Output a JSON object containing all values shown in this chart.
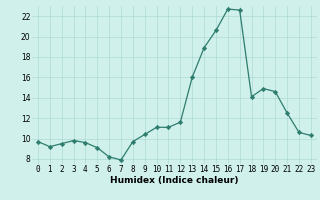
{
  "x": [
    0,
    1,
    2,
    3,
    4,
    5,
    6,
    7,
    8,
    9,
    10,
    11,
    12,
    13,
    14,
    15,
    16,
    17,
    18,
    19,
    20,
    21,
    22,
    23
  ],
  "y": [
    9.7,
    9.2,
    9.5,
    9.8,
    9.6,
    9.1,
    8.2,
    7.9,
    9.7,
    10.4,
    11.1,
    11.1,
    11.6,
    16.0,
    18.9,
    20.6,
    22.7,
    22.6,
    14.1,
    14.9,
    14.6,
    12.5,
    10.6,
    10.3
  ],
  "line_color": "#2e7d6e",
  "marker": "D",
  "marker_size": 2.2,
  "line_width": 0.9,
  "bg_color": "#cff0eb",
  "grid_color": "#aedbd5",
  "xlabel": "Humidex (Indice chaleur)",
  "xlim": [
    -0.5,
    23.5
  ],
  "ylim": [
    7.5,
    23.0
  ],
  "yticks": [
    8,
    10,
    12,
    14,
    16,
    18,
    20,
    22
  ],
  "xtick_labels": [
    "0",
    "1",
    "2",
    "3",
    "4",
    "5",
    "6",
    "7",
    "8",
    "9",
    "10",
    "11",
    "12",
    "13",
    "14",
    "15",
    "16",
    "17",
    "18",
    "19",
    "20",
    "21",
    "22",
    "23"
  ],
  "xlabel_fontsize": 6.5,
  "tick_fontsize": 5.5
}
